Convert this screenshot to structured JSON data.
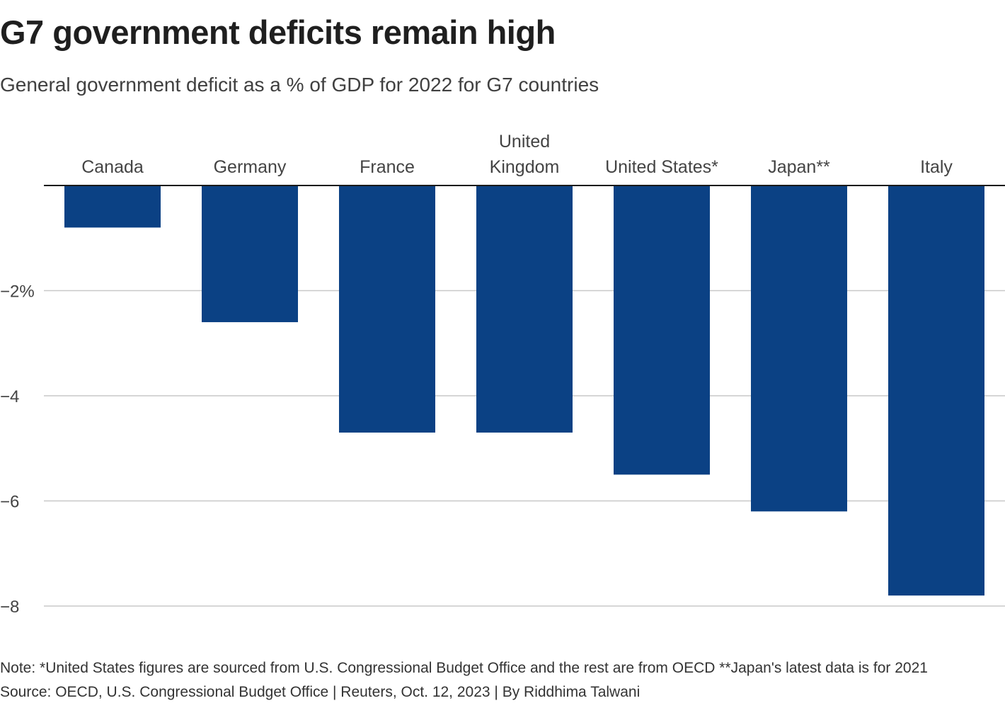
{
  "header": {
    "title": "G7 government deficits remain high",
    "subtitle": "General government deficit as a % of GDP for 2022 for G7 countries"
  },
  "footer": {
    "note": "Note: *United States figures are sourced from U.S. Congressional Budget Office and the rest are from OECD **Japan's latest data is for 2021",
    "source": "Source: OECD, U.S. Congressional Budget Office | Reuters, Oct. 12, 2023 | By Riddhima Talwani"
  },
  "colors": {
    "bar": "#0b4184",
    "gridline": "#c8c8c8",
    "baseline": "#1a1a1a",
    "label": "#444444"
  },
  "chart_data": {
    "type": "bar",
    "categories": [
      [
        "Canada"
      ],
      [
        "Germany"
      ],
      [
        "France"
      ],
      [
        "United",
        "Kingdom"
      ],
      [
        "United States*"
      ],
      [
        "Japan**"
      ],
      [
        "Italy"
      ]
    ],
    "values": [
      -0.8,
      -2.6,
      -4.7,
      -4.7,
      -5.5,
      -6.2,
      -7.8
    ],
    "yticks": [
      {
        "value": -2,
        "label": "−2%"
      },
      {
        "value": -4,
        "label": "−4"
      },
      {
        "value": -6,
        "label": "−6"
      },
      {
        "value": -8,
        "label": "−8"
      }
    ],
    "ylim": [
      -8,
      0
    ],
    "category_labels_position": "top",
    "grid": true
  }
}
